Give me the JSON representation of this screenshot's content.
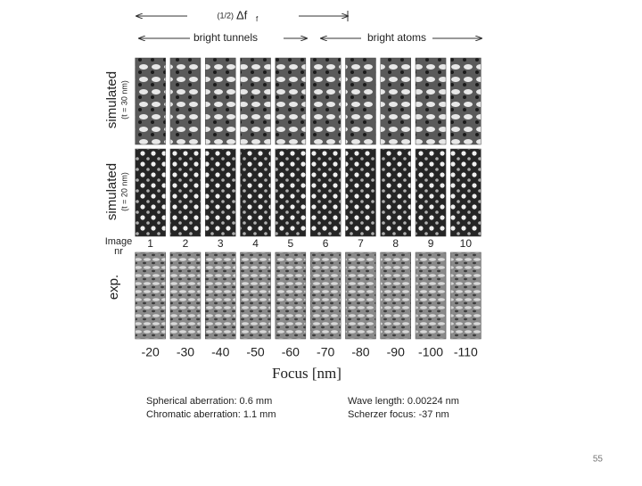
{
  "figure": {
    "defocus_label": {
      "prefix": "(1/2)",
      "symbol": "Δf",
      "subscript": "f"
    },
    "ranges": [
      "bright tunnels",
      "bright atoms"
    ],
    "rows": [
      {
        "label": "simulated",
        "sublabel": "(t = 30 nm)"
      },
      {
        "label": "simulated",
        "sublabel": "(t = 20 nm)"
      },
      {
        "label": "exp."
      }
    ],
    "image_nr_label": [
      "Image",
      "nr"
    ],
    "image_numbers": [
      "1",
      "2",
      "3",
      "4",
      "5",
      "6",
      "7",
      "8",
      "9",
      "10"
    ],
    "focus_values": [
      "-20",
      "-30",
      "-40",
      "-50",
      "-60",
      "-70",
      "-80",
      "-90",
      "-100",
      "-110"
    ],
    "focus_axis_label": "Focus [nm]",
    "parameters": [
      "Spherical aberration: 0.6 mm",
      "Chromatic aberration: 1.1 mm",
      "Wave length: 0.00224 nm",
      "Scherzer focus: -37 nm"
    ]
  },
  "slide_number": "55"
}
